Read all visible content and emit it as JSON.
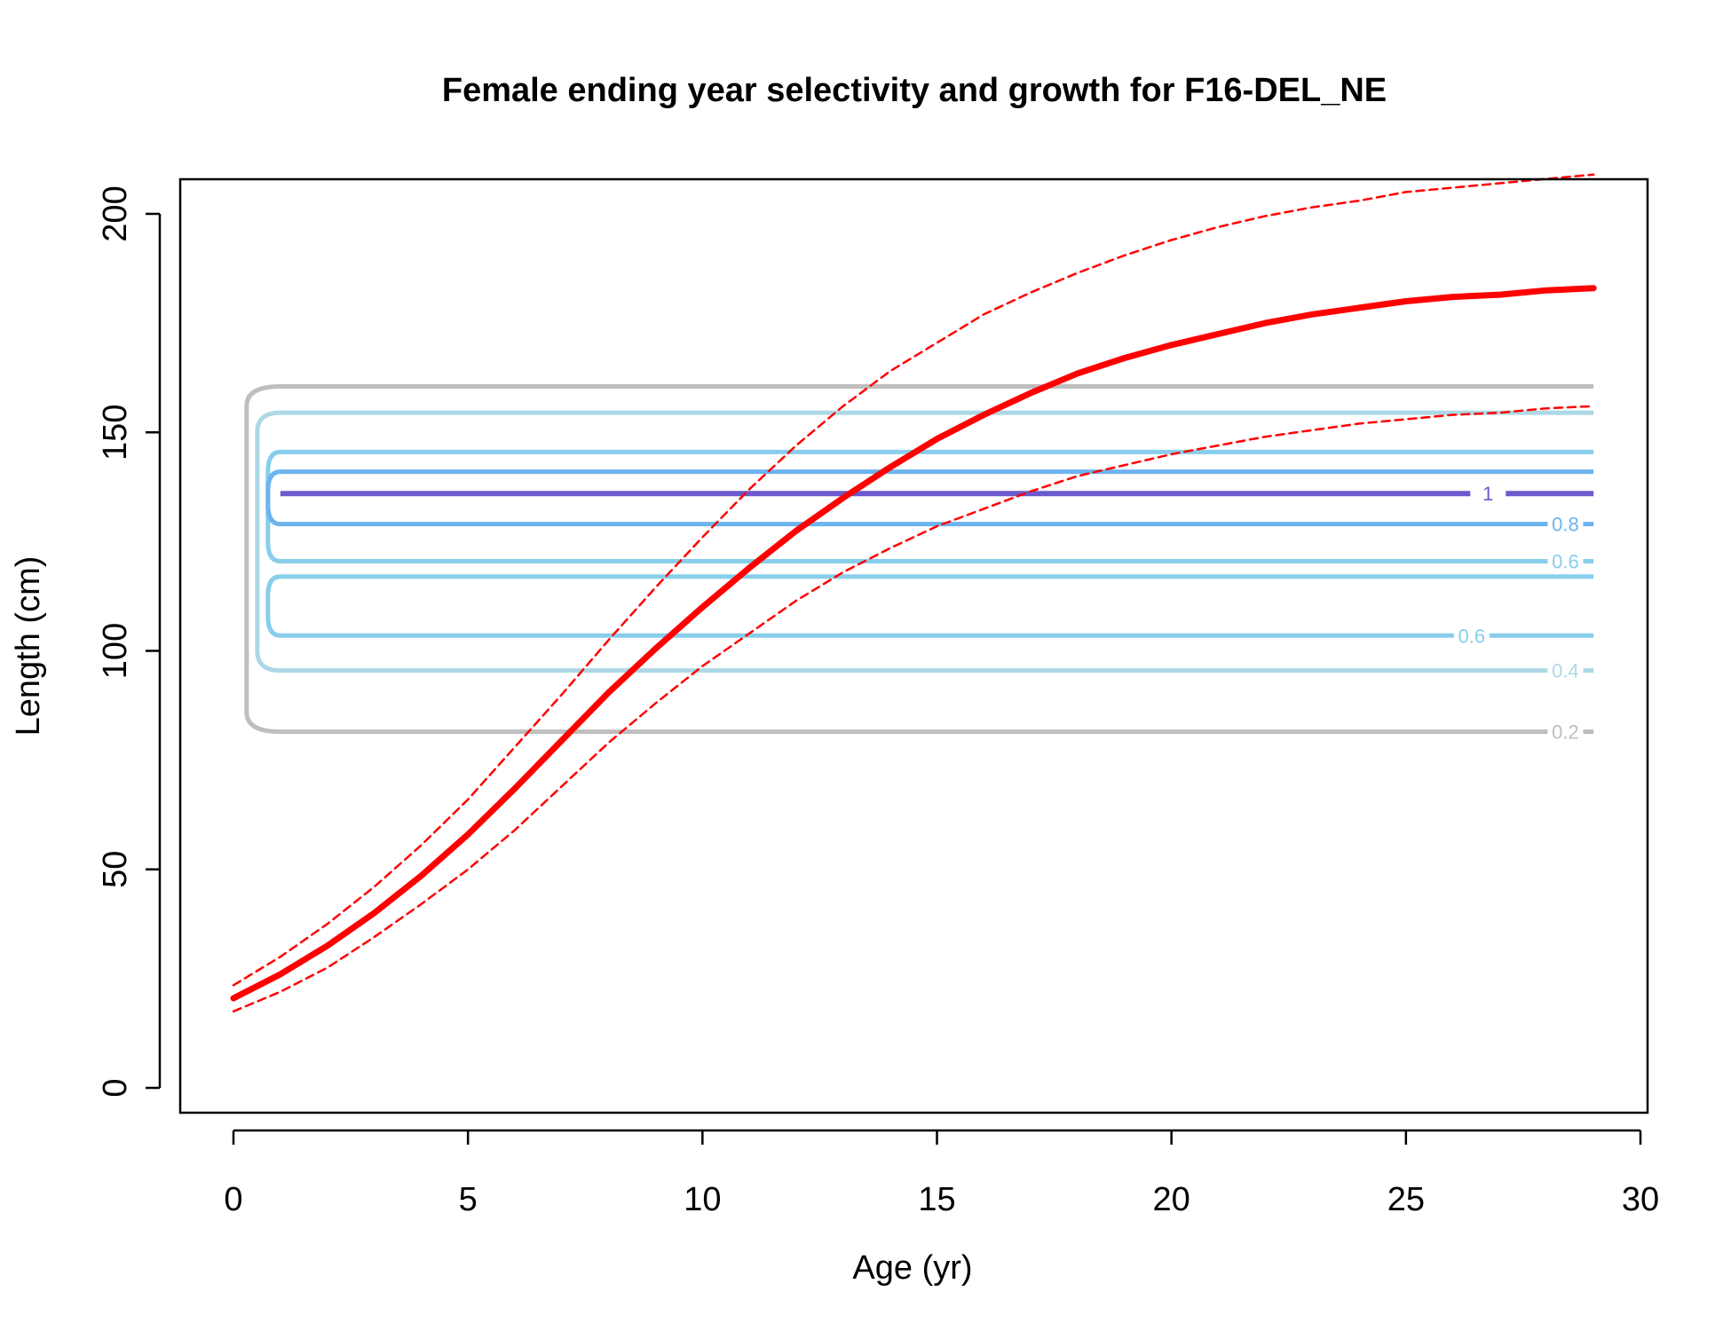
{
  "chart_data": {
    "type": "line",
    "title": "Female ending year selectivity and growth for F16-DEL_NE",
    "xlabel": "Age (yr)",
    "ylabel": "Length (cm)",
    "xlim": [
      -1.2,
      30.1
    ],
    "ylim": [
      -6,
      208
    ],
    "x_ticks": [
      0,
      5,
      10,
      15,
      20,
      25,
      30
    ],
    "y_ticks": [
      0,
      50,
      100,
      150,
      200
    ],
    "grid": false,
    "series": [
      {
        "role": "mean-growth",
        "color": "#ff0000",
        "style": "solid-thick",
        "x": [
          0,
          1,
          2,
          3,
          4,
          5,
          6,
          7,
          8,
          9,
          10,
          11,
          12,
          13,
          14,
          15,
          16,
          17,
          18,
          19,
          20,
          21,
          22,
          23,
          24,
          25,
          26,
          27,
          28,
          29
        ],
        "y": [
          20.5,
          26,
          32.5,
          40,
          48.5,
          58,
          68.5,
          79.5,
          90.5,
          100.5,
          110,
          119,
          127.5,
          135,
          142,
          148.5,
          154,
          159,
          163.5,
          167,
          170,
          172.5,
          175,
          177,
          178.5,
          180,
          181,
          181.5,
          182.5,
          183
        ]
      },
      {
        "role": "upper-interval",
        "color": "#ff0000",
        "style": "dashed",
        "x": [
          0,
          1,
          2,
          3,
          4,
          5,
          6,
          7,
          8,
          9,
          10,
          11,
          12,
          13,
          14,
          15,
          16,
          17,
          18,
          19,
          20,
          21,
          22,
          23,
          24,
          25,
          26,
          27,
          28,
          29
        ],
        "y": [
          23.5,
          30,
          37.5,
          46,
          55.5,
          66,
          78,
          90,
          102.5,
          114.5,
          126,
          137,
          147,
          156,
          164,
          170.5,
          177,
          182,
          186.5,
          190.5,
          194,
          197,
          199.5,
          201.5,
          203,
          205,
          206,
          207,
          208,
          209
        ]
      },
      {
        "role": "lower-interval",
        "color": "#ff0000",
        "style": "dashed",
        "x": [
          0,
          1,
          2,
          3,
          4,
          5,
          6,
          7,
          8,
          9,
          10,
          11,
          12,
          13,
          14,
          15,
          16,
          17,
          18,
          19,
          20,
          21,
          22,
          23,
          24,
          25,
          26,
          27,
          28,
          29
        ],
        "y": [
          17.5,
          22,
          27.5,
          34.5,
          42,
          50,
          59,
          69,
          79,
          88,
          96.5,
          104,
          111.5,
          118,
          123.5,
          128.5,
          132.5,
          136.5,
          140,
          142.5,
          145,
          147,
          149,
          150.5,
          152,
          153,
          154,
          154.5,
          155.5,
          156
        ]
      }
    ],
    "contours": [
      {
        "level": "0.2",
        "color": "#bebebe",
        "lower": 81.5,
        "upper": 160.5,
        "label_at": "lower"
      },
      {
        "level": "0.4",
        "color": "#add8e6",
        "lower": 95.5,
        "upper": 154.5,
        "label_at": "lower"
      },
      {
        "level": "0.6",
        "color": "#87ceeb",
        "lower": 103.5,
        "upper": 117,
        "label_at": "lower",
        "label_x": 26.4
      },
      {
        "level": "0.6",
        "color": "#87ceeb",
        "lower": 120.5,
        "upper": 145.5,
        "label_at": "lower"
      },
      {
        "level": "0.8",
        "color": "#6cb4ee",
        "lower": 129,
        "upper": 141,
        "label_at": "lower"
      },
      {
        "level": "1",
        "color": "#6a5acd",
        "lower": 136,
        "upper": 136,
        "label_at": "lower",
        "label_x": 26.75
      }
    ]
  }
}
